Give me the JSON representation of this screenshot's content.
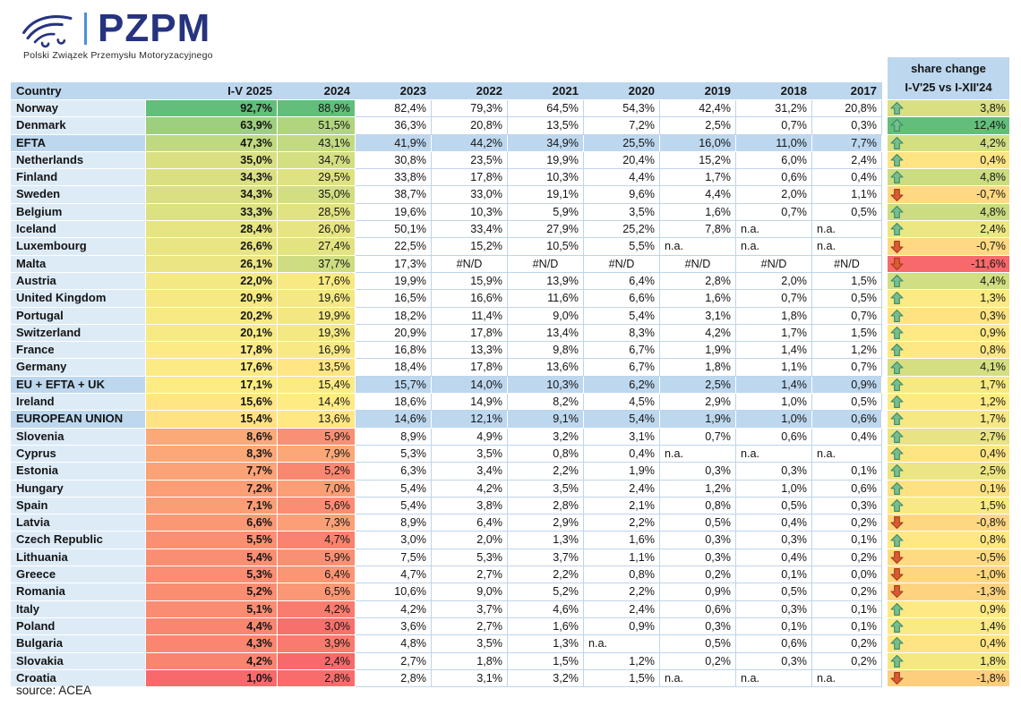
{
  "logo": {
    "brand": "PZPM",
    "subtitle": "Polski Związek Przemysłu Motoryzacyjnego",
    "car_icon": "car-swoosh-icon"
  },
  "source_note": "source: ACEA",
  "style": {
    "scale_stops": [
      "#F8696B",
      "#FFEB84",
      "#63BE7B"
    ],
    "header_bg": "#BDD7EE",
    "country_bg": "#DDEBF7",
    "aggregate_bg": "#BDD7EE",
    "grid_line": "#BFD5EA",
    "up_arrow_fill": "#7ABD8D",
    "up_arrow_stroke": "#3B8A67",
    "down_arrow_fill": "#D95B35",
    "down_arrow_stroke": "#A63A17",
    "brand_blue": "#26337F",
    "logo_bar": "#4A90D9"
  },
  "chart_data": {
    "type": "table",
    "columns": [
      "Country",
      "I-V 2025",
      "2024",
      "2023",
      "2022",
      "2021",
      "2020",
      "2019",
      "2018",
      "2017"
    ],
    "change_header": {
      "line1": "share change",
      "line2": "I-V'25 vs I-XII'24"
    },
    "color_scaled_columns": [
      "I-V 2025",
      "2024",
      "share change"
    ],
    "rows": [
      {
        "country": "Norway",
        "aggregate": false,
        "values": [
          "92,7%",
          "88,9%",
          "82,4%",
          "79,3%",
          "64,5%",
          "54,3%",
          "42,4%",
          "31,2%",
          "20,8%"
        ],
        "change_dir": "up",
        "change": "3,8%"
      },
      {
        "country": "Denmark",
        "aggregate": false,
        "values": [
          "63,9%",
          "51,5%",
          "36,3%",
          "20,8%",
          "13,5%",
          "7,2%",
          "2,5%",
          "0,7%",
          "0,3%"
        ],
        "change_dir": "up",
        "change": "12,4%"
      },
      {
        "country": "EFTA",
        "aggregate": true,
        "values": [
          "47,3%",
          "43,1%",
          "41,9%",
          "44,2%",
          "34,9%",
          "25,5%",
          "16,0%",
          "11,0%",
          "7,7%"
        ],
        "change_dir": "up",
        "change": "4,2%"
      },
      {
        "country": "Netherlands",
        "aggregate": false,
        "values": [
          "35,0%",
          "34,7%",
          "30,8%",
          "23,5%",
          "19,9%",
          "20,4%",
          "15,2%",
          "6,0%",
          "2,4%"
        ],
        "change_dir": "up",
        "change": "0,4%"
      },
      {
        "country": "Finland",
        "aggregate": false,
        "values": [
          "34,3%",
          "29,5%",
          "33,8%",
          "17,8%",
          "10,3%",
          "4,4%",
          "1,7%",
          "0,6%",
          "0,4%"
        ],
        "change_dir": "up",
        "change": "4,8%"
      },
      {
        "country": "Sweden",
        "aggregate": false,
        "values": [
          "34,3%",
          "35,0%",
          "38,7%",
          "33,0%",
          "19,1%",
          "9,6%",
          "4,4%",
          "2,0%",
          "1,1%"
        ],
        "change_dir": "down",
        "change": "-0,7%"
      },
      {
        "country": "Belgium",
        "aggregate": false,
        "values": [
          "33,3%",
          "28,5%",
          "19,6%",
          "10,3%",
          "5,9%",
          "3,5%",
          "1,6%",
          "0,7%",
          "0,5%"
        ],
        "change_dir": "up",
        "change": "4,8%"
      },
      {
        "country": "Iceland",
        "aggregate": false,
        "values": [
          "28,4%",
          "26,0%",
          "50,1%",
          "33,4%",
          "27,9%",
          "25,2%",
          "7,8%",
          "n.a.",
          "n.a."
        ],
        "change_dir": "up",
        "change": "2,4%"
      },
      {
        "country": "Luxembourg",
        "aggregate": false,
        "values": [
          "26,6%",
          "27,4%",
          "22,5%",
          "15,2%",
          "10,5%",
          "5,5%",
          "n.a.",
          "n.a.",
          "n.a."
        ],
        "change_dir": "down",
        "change": "-0,7%"
      },
      {
        "country": "Malta",
        "aggregate": false,
        "values": [
          "26,1%",
          "37,7%",
          "17,3%",
          "#N/D",
          "#N/D",
          "#N/D",
          "#N/D",
          "#N/D",
          "#N/D"
        ],
        "change_dir": "down",
        "change": "-11,6%"
      },
      {
        "country": "Austria",
        "aggregate": false,
        "values": [
          "22,0%",
          "17,6%",
          "19,9%",
          "15,9%",
          "13,9%",
          "6,4%",
          "2,8%",
          "2,0%",
          "1,5%"
        ],
        "change_dir": "up",
        "change": "4,4%"
      },
      {
        "country": "United Kingdom",
        "aggregate": false,
        "values": [
          "20,9%",
          "19,6%",
          "16,5%",
          "16,6%",
          "11,6%",
          "6,6%",
          "1,6%",
          "0,7%",
          "0,5%"
        ],
        "change_dir": "up",
        "change": "1,3%"
      },
      {
        "country": "Portugal",
        "aggregate": false,
        "values": [
          "20,2%",
          "19,9%",
          "18,2%",
          "11,4%",
          "9,0%",
          "5,4%",
          "3,1%",
          "1,8%",
          "0,7%"
        ],
        "change_dir": "up",
        "change": "0,3%"
      },
      {
        "country": "Switzerland",
        "aggregate": false,
        "values": [
          "20,1%",
          "19,3%",
          "20,9%",
          "17,8%",
          "13,4%",
          "8,3%",
          "4,2%",
          "1,7%",
          "1,5%"
        ],
        "change_dir": "up",
        "change": "0,9%"
      },
      {
        "country": "France",
        "aggregate": false,
        "values": [
          "17,8%",
          "16,9%",
          "16,8%",
          "13,3%",
          "9,8%",
          "6,7%",
          "1,9%",
          "1,4%",
          "1,2%"
        ],
        "change_dir": "up",
        "change": "0,8%"
      },
      {
        "country": "Germany",
        "aggregate": false,
        "values": [
          "17,6%",
          "13,5%",
          "18,4%",
          "17,8%",
          "13,6%",
          "6,7%",
          "1,8%",
          "1,1%",
          "0,7%"
        ],
        "change_dir": "up",
        "change": "4,1%"
      },
      {
        "country": "EU + EFTA + UK",
        "aggregate": true,
        "values": [
          "17,1%",
          "15,4%",
          "15,7%",
          "14,0%",
          "10,3%",
          "6,2%",
          "2,5%",
          "1,4%",
          "0,9%"
        ],
        "change_dir": "up",
        "change": "1,7%"
      },
      {
        "country": "Ireland",
        "aggregate": false,
        "values": [
          "15,6%",
          "14,4%",
          "18,6%",
          "14,9%",
          "8,2%",
          "4,5%",
          "2,9%",
          "1,0%",
          "0,5%"
        ],
        "change_dir": "up",
        "change": "1,2%"
      },
      {
        "country": "EUROPEAN UNION",
        "aggregate": true,
        "values": [
          "15,4%",
          "13,6%",
          "14,6%",
          "12,1%",
          "9,1%",
          "5,4%",
          "1,9%",
          "1,0%",
          "0,6%"
        ],
        "change_dir": "up",
        "change": "1,7%"
      },
      {
        "country": "Slovenia",
        "aggregate": false,
        "values": [
          "8,6%",
          "5,9%",
          "8,9%",
          "4,9%",
          "3,2%",
          "3,1%",
          "0,7%",
          "0,6%",
          "0,4%"
        ],
        "change_dir": "up",
        "change": "2,7%"
      },
      {
        "country": "Cyprus",
        "aggregate": false,
        "values": [
          "8,3%",
          "7,9%",
          "5,3%",
          "3,5%",
          "0,8%",
          "0,4%",
          "n.a.",
          "n.a.",
          "n.a."
        ],
        "change_dir": "up",
        "change": "0,4%"
      },
      {
        "country": "Estonia",
        "aggregate": false,
        "values": [
          "7,7%",
          "5,2%",
          "6,3%",
          "3,4%",
          "2,2%",
          "1,9%",
          "0,3%",
          "0,3%",
          "0,1%"
        ],
        "change_dir": "up",
        "change": "2,5%"
      },
      {
        "country": "Hungary",
        "aggregate": false,
        "values": [
          "7,2%",
          "7,0%",
          "5,4%",
          "4,2%",
          "3,5%",
          "2,4%",
          "1,2%",
          "1,0%",
          "0,6%"
        ],
        "change_dir": "up",
        "change": "0,1%"
      },
      {
        "country": "Spain",
        "aggregate": false,
        "values": [
          "7,1%",
          "5,6%",
          "5,4%",
          "3,8%",
          "2,8%",
          "2,1%",
          "0,8%",
          "0,5%",
          "0,3%"
        ],
        "change_dir": "up",
        "change": "1,5%"
      },
      {
        "country": "Latvia",
        "aggregate": false,
        "values": [
          "6,6%",
          "7,3%",
          "8,9%",
          "6,4%",
          "2,9%",
          "2,2%",
          "0,5%",
          "0,4%",
          "0,2%"
        ],
        "change_dir": "down",
        "change": "-0,8%"
      },
      {
        "country": "Czech Republic",
        "aggregate": false,
        "values": [
          "5,5%",
          "4,7%",
          "3,0%",
          "2,0%",
          "1,3%",
          "1,6%",
          "0,3%",
          "0,3%",
          "0,1%"
        ],
        "change_dir": "up",
        "change": "0,8%"
      },
      {
        "country": "Lithuania",
        "aggregate": false,
        "values": [
          "5,4%",
          "5,9%",
          "7,5%",
          "5,3%",
          "3,7%",
          "1,1%",
          "0,3%",
          "0,4%",
          "0,2%"
        ],
        "change_dir": "down",
        "change": "-0,5%"
      },
      {
        "country": "Greece",
        "aggregate": false,
        "values": [
          "5,3%",
          "6,4%",
          "4,7%",
          "2,7%",
          "2,2%",
          "0,8%",
          "0,2%",
          "0,1%",
          "0,0%"
        ],
        "change_dir": "down",
        "change": "-1,0%"
      },
      {
        "country": "Romania",
        "aggregate": false,
        "values": [
          "5,2%",
          "6,5%",
          "10,6%",
          "9,0%",
          "5,2%",
          "2,2%",
          "0,9%",
          "0,5%",
          "0,2%"
        ],
        "change_dir": "down",
        "change": "-1,3%"
      },
      {
        "country": "Italy",
        "aggregate": false,
        "values": [
          "5,1%",
          "4,2%",
          "4,2%",
          "3,7%",
          "4,6%",
          "2,4%",
          "0,6%",
          "0,3%",
          "0,1%"
        ],
        "change_dir": "up",
        "change": "0,9%"
      },
      {
        "country": "Poland",
        "aggregate": false,
        "values": [
          "4,4%",
          "3,0%",
          "3,6%",
          "2,7%",
          "1,6%",
          "0,9%",
          "0,3%",
          "0,1%",
          "0,1%"
        ],
        "change_dir": "up",
        "change": "1,4%"
      },
      {
        "country": "Bulgaria",
        "aggregate": false,
        "values": [
          "4,3%",
          "3,9%",
          "4,8%",
          "3,5%",
          "1,3%",
          "n.a.",
          "0,5%",
          "0,6%",
          "0,2%"
        ],
        "change_dir": "up",
        "change": "0,4%"
      },
      {
        "country": "Slovakia",
        "aggregate": false,
        "values": [
          "4,2%",
          "2,4%",
          "2,7%",
          "1,8%",
          "1,5%",
          "1,2%",
          "0,2%",
          "0,3%",
          "0,2%"
        ],
        "change_dir": "up",
        "change": "1,8%"
      },
      {
        "country": "Croatia",
        "aggregate": false,
        "values": [
          "1,0%",
          "2,8%",
          "2,8%",
          "3,1%",
          "3,2%",
          "1,5%",
          "n.a.",
          "n.a.",
          "n.a."
        ],
        "change_dir": "down",
        "change": "-1,8%"
      }
    ]
  }
}
